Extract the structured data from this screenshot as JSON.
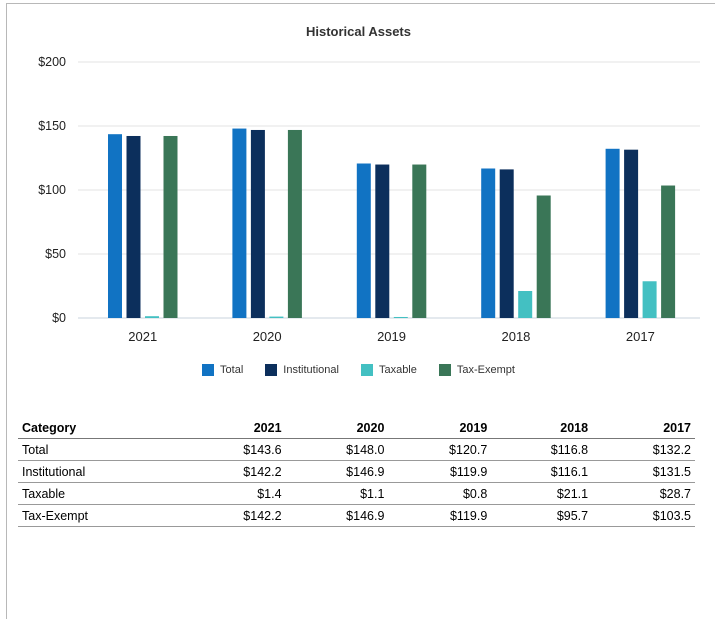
{
  "chart_data": {
    "type": "bar",
    "title": "Historical Assets",
    "categories": [
      "2021",
      "2020",
      "2019",
      "2018",
      "2017"
    ],
    "series": [
      {
        "name": "Total",
        "color": "#1173c3",
        "values": [
          143.6,
          148.0,
          120.7,
          116.8,
          132.2
        ]
      },
      {
        "name": "Institutional",
        "color": "#0c2f5c",
        "values": [
          142.2,
          146.9,
          119.9,
          116.1,
          131.5
        ]
      },
      {
        "name": "Taxable",
        "color": "#43c0c2",
        "values": [
          1.4,
          1.1,
          0.8,
          21.1,
          28.7
        ]
      },
      {
        "name": "Tax-Exempt",
        "color": "#3a7657",
        "values": [
          142.2,
          146.9,
          119.9,
          95.7,
          103.5
        ]
      }
    ],
    "y_ticks": [
      "$0",
      "$50",
      "$100",
      "$150",
      "$200"
    ],
    "ylim": [
      0,
      200
    ],
    "grid": true,
    "legend_position": "bottom"
  },
  "table": {
    "headers": [
      "Category",
      "2021",
      "2020",
      "2019",
      "2018",
      "2017"
    ],
    "rows": [
      [
        "Total",
        "$143.6",
        "$148.0",
        "$120.7",
        "$116.8",
        "$132.2"
      ],
      [
        "Institutional",
        "$142.2",
        "$146.9",
        "$119.9",
        "$116.1",
        "$131.5"
      ],
      [
        "Taxable",
        "$1.4",
        "$1.1",
        "$0.8",
        "$21.1",
        "$28.7"
      ],
      [
        "Tax-Exempt",
        "$142.2",
        "$146.9",
        "$119.9",
        "$95.7",
        "$103.5"
      ]
    ]
  }
}
